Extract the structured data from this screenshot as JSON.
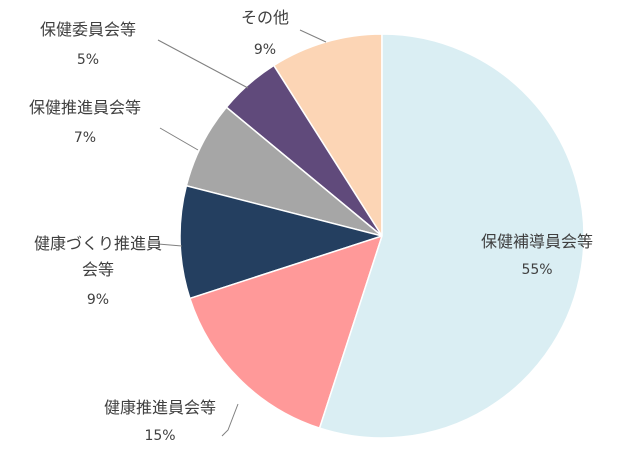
{
  "chart_data": {
    "type": "pie",
    "categories": [
      "保健補導員会等",
      "健康推進員会等",
      "健康づくり推進員会等",
      "保健推進員会等",
      "保健委員会等",
      "その他"
    ],
    "values": [
      55,
      15,
      9,
      7,
      5,
      9
    ],
    "value_labels": [
      "55%",
      "15%",
      "9%",
      "7%",
      "5%",
      "9%"
    ],
    "colors": [
      "#daeef3",
      "#ff9999",
      "#243f60",
      "#a6a6a6",
      "#604a7b",
      "#fcd5b5"
    ]
  }
}
